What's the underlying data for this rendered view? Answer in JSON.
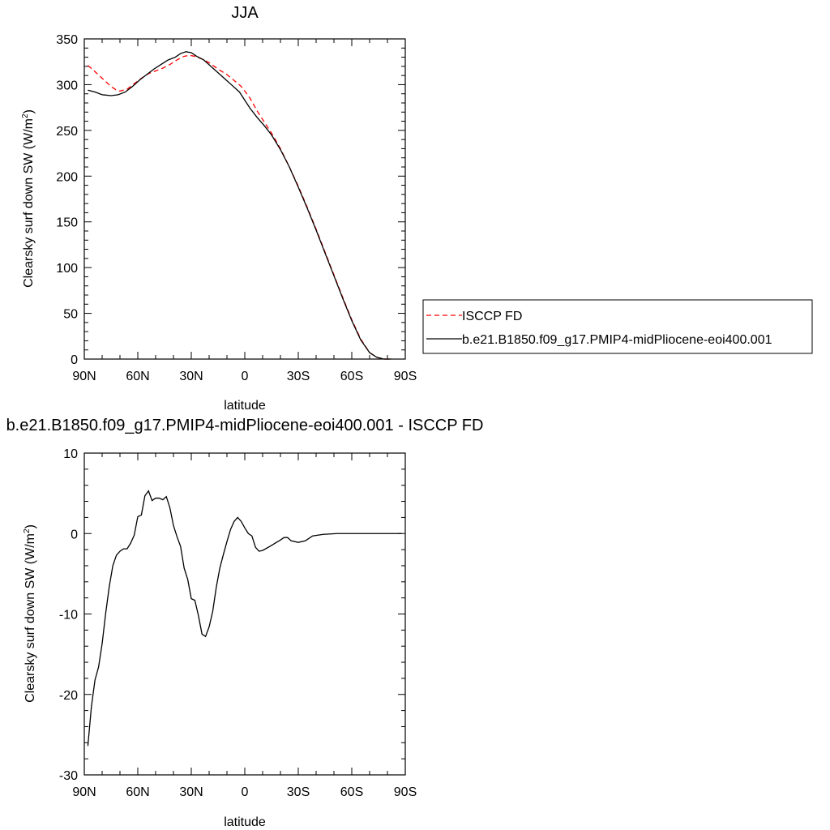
{
  "chart_data": [
    {
      "type": "line",
      "title": "JJA",
      "xlabel": "latitude",
      "ylabel": "Clearsky surf down SW (W/m",
      "ylabel_sup": "2",
      "ylabel_close": ")",
      "xlim": [
        90,
        -90
      ],
      "ylim": [
        0,
        350
      ],
      "xticks": [
        90,
        60,
        30,
        0,
        -30,
        -60,
        -90
      ],
      "xtick_labels": [
        "90N",
        "60N",
        "30N",
        "0",
        "30S",
        "60S",
        "90S"
      ],
      "yticks": [
        0,
        50,
        100,
        150,
        200,
        250,
        300,
        350
      ],
      "ytick_labels": [
        "0",
        "50",
        "100",
        "150",
        "200",
        "250",
        "300",
        "350"
      ],
      "grid": false,
      "legend_position": "right",
      "series": [
        {
          "name": "ISCCP FD",
          "color": "#ff0000",
          "dash": "dashed",
          "points": [
            [
              88,
              321
            ],
            [
              85,
              316
            ],
            [
              80,
              307
            ],
            [
              75,
              298
            ],
            [
              72,
              294
            ],
            [
              70,
              293
            ],
            [
              66,
              295
            ],
            [
              62,
              301
            ],
            [
              58,
              307
            ],
            [
              54,
              312
            ],
            [
              50,
              315
            ],
            [
              46,
              318
            ],
            [
              42,
              322
            ],
            [
              38,
              327
            ],
            [
              34,
              331
            ],
            [
              31,
              332
            ],
            [
              28,
              331
            ],
            [
              24,
              328
            ],
            [
              20,
              324
            ],
            [
              15,
              317
            ],
            [
              10,
              311
            ],
            [
              5,
              303
            ],
            [
              2,
              298
            ],
            [
              0,
              293
            ],
            [
              -3,
              285
            ],
            [
              -7,
              271
            ],
            [
              -10,
              262
            ],
            [
              -15,
              247
            ],
            [
              -20,
              230
            ],
            [
              -25,
              210
            ],
            [
              -30,
              189
            ],
            [
              -35,
              166
            ],
            [
              -40,
              142
            ],
            [
              -45,
              117
            ],
            [
              -50,
              92
            ],
            [
              -55,
              67
            ],
            [
              -60,
              43
            ],
            [
              -65,
              22
            ],
            [
              -70,
              7
            ],
            [
              -74,
              2
            ],
            [
              -78,
              0
            ],
            [
              -82,
              0
            ]
          ]
        },
        {
          "name": "b.e21.B1850.f09_g17.PMIP4-midPliocene-eoi400.001",
          "color": "#000000",
          "dash": "solid",
          "points": [
            [
              88,
              294
            ],
            [
              84,
              292
            ],
            [
              80,
              289
            ],
            [
              75,
              288
            ],
            [
              71,
              289
            ],
            [
              67,
              292
            ],
            [
              63,
              298
            ],
            [
              59,
              305
            ],
            [
              55,
              311
            ],
            [
              51,
              317
            ],
            [
              47,
              322
            ],
            [
              43,
              327
            ],
            [
              39,
              330
            ],
            [
              36,
              334
            ],
            [
              33,
              336
            ],
            [
              30,
              335
            ],
            [
              27,
              331
            ],
            [
              23,
              327
            ],
            [
              19,
              320
            ],
            [
              15,
              313
            ],
            [
              11,
              306
            ],
            [
              7,
              299
            ],
            [
              3,
              292
            ],
            [
              0,
              283
            ],
            [
              -3,
              274
            ],
            [
              -7,
              264
            ],
            [
              -11,
              255
            ],
            [
              -15,
              245
            ],
            [
              -20,
              229
            ],
            [
              -25,
              210
            ],
            [
              -30,
              188
            ],
            [
              -35,
              165
            ],
            [
              -40,
              141
            ],
            [
              -45,
              116
            ],
            [
              -50,
              91
            ],
            [
              -55,
              66
            ],
            [
              -60,
              42
            ],
            [
              -65,
              21
            ],
            [
              -70,
              7
            ],
            [
              -74,
              2
            ],
            [
              -78,
              0
            ],
            [
              -82,
              0
            ]
          ]
        }
      ]
    },
    {
      "type": "line",
      "title": "b.e21.B1850.f09_g17.PMIP4-midPliocene-eoi400.001 - ISCCP FD",
      "xlabel": "latitude",
      "ylabel": "Clearsky surf down SW (W/m",
      "ylabel_sup": "2",
      "ylabel_close": ")",
      "xlim": [
        90,
        -90
      ],
      "ylim": [
        -30,
        10
      ],
      "xticks": [
        90,
        60,
        30,
        0,
        -30,
        -60,
        -90
      ],
      "xtick_labels": [
        "90N",
        "60N",
        "30N",
        "0",
        "30S",
        "60S",
        "90S"
      ],
      "yticks": [
        -30,
        -20,
        -10,
        0,
        10
      ],
      "ytick_labels": [
        "-30",
        "-20",
        "-10",
        "0",
        "10"
      ],
      "grid": false,
      "series": [
        {
          "color": "#000000",
          "dash": "solid",
          "points": [
            [
              88,
              -26.4
            ],
            [
              86,
              -21.5
            ],
            [
              84,
              -18.2
            ],
            [
              82,
              -16.6
            ],
            [
              80,
              -13.7
            ],
            [
              78,
              -9.9
            ],
            [
              76,
              -6.6
            ],
            [
              74,
              -4.0
            ],
            [
              72,
              -2.7
            ],
            [
              70,
              -2.2
            ],
            [
              68,
              -1.9
            ],
            [
              66,
              -1.9
            ],
            [
              64,
              -1.2
            ],
            [
              62,
              -0.2
            ],
            [
              60,
              2.1
            ],
            [
              58,
              2.3
            ],
            [
              56,
              4.7
            ],
            [
              54,
              5.3
            ],
            [
              52,
              4.1
            ],
            [
              50,
              4.4
            ],
            [
              48,
              4.4
            ],
            [
              46,
              4.2
            ],
            [
              44,
              4.6
            ],
            [
              42,
              3.2
            ],
            [
              40,
              1.0
            ],
            [
              38,
              -0.4
            ],
            [
              36,
              -1.6
            ],
            [
              34,
              -4.3
            ],
            [
              32,
              -5.7
            ],
            [
              30,
              -8.1
            ],
            [
              28,
              -8.3
            ],
            [
              26,
              -10.2
            ],
            [
              24,
              -12.5
            ],
            [
              22,
              -12.8
            ],
            [
              20,
              -11.6
            ],
            [
              18,
              -9.7
            ],
            [
              16,
              -6.7
            ],
            [
              14,
              -4.3
            ],
            [
              12,
              -2.6
            ],
            [
              10,
              -1.0
            ],
            [
              8,
              0.5
            ],
            [
              6,
              1.5
            ],
            [
              4,
              2.0
            ],
            [
              2,
              1.5
            ],
            [
              0,
              0.7
            ],
            [
              -2,
              0.0
            ],
            [
              -4,
              -0.3
            ],
            [
              -6,
              -1.7
            ],
            [
              -8,
              -2.2
            ],
            [
              -10,
              -2.1
            ],
            [
              -14,
              -1.6
            ],
            [
              -17,
              -1.2
            ],
            [
              -20,
              -0.8
            ],
            [
              -22,
              -0.5
            ],
            [
              -24,
              -0.5
            ],
            [
              -26,
              -0.9
            ],
            [
              -30,
              -1.1
            ],
            [
              -34,
              -0.9
            ],
            [
              -38,
              -0.3
            ],
            [
              -44,
              -0.1
            ],
            [
              -52,
              0.0
            ],
            [
              -60,
              0.0
            ],
            [
              -70,
              0.0
            ],
            [
              -88,
              0.0
            ]
          ]
        }
      ]
    }
  ]
}
